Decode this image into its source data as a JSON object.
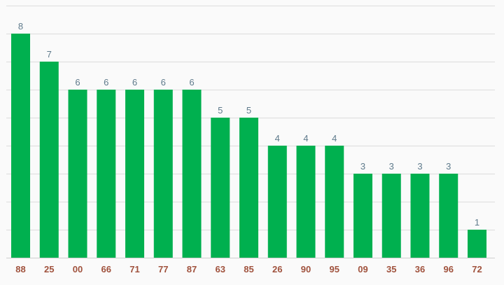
{
  "chart_data": {
    "type": "bar",
    "categories": [
      "88",
      "25",
      "00",
      "66",
      "71",
      "77",
      "87",
      "63",
      "85",
      "26",
      "90",
      "95",
      "09",
      "35",
      "36",
      "96",
      "72"
    ],
    "values": [
      8,
      7,
      6,
      6,
      6,
      6,
      6,
      5,
      5,
      4,
      4,
      4,
      3,
      3,
      3,
      3,
      1
    ],
    "title": "",
    "xlabel": "",
    "ylabel": "",
    "ylim": [
      0,
      9
    ],
    "grid": true,
    "legend": "none",
    "colors": {
      "bar": "#00b04f",
      "data_label": "#5f7b8c",
      "tick_label": "#a0523d",
      "grid": "#dcdcdc",
      "background": "#fafafa"
    }
  }
}
